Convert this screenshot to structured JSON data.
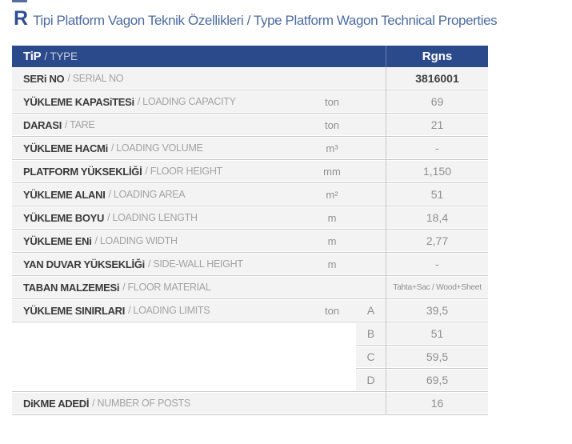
{
  "title": {
    "prefix": "R",
    "text": "Tipi Platform Vagon Teknik Özellikleri / Type Platform Wagon Technical Properties"
  },
  "table": {
    "header": {
      "tr": "TiP",
      "en": "/ TYPE",
      "value": "Rgns"
    },
    "rows": [
      {
        "tr": "SERi NO",
        "en": "/ SERIAL NO",
        "unit": "",
        "letter": "",
        "value": "3816001"
      },
      {
        "tr": "YÜKLEME KAPASiTESi",
        "en": "/ LOADING CAPACITY",
        "unit": "ton",
        "letter": "",
        "value": "69"
      },
      {
        "tr": "DARASI",
        "en": "/ TARE",
        "unit": "ton",
        "letter": "",
        "value": "21"
      },
      {
        "tr": "YÜKLEME HACMi",
        "en": "/ LOADING VOLUME",
        "unit": "m³",
        "letter": "",
        "value": "-"
      },
      {
        "tr": "PLATFORM YÜKSEKLİĞİ",
        "en": "/ FLOOR HEIGHT",
        "unit": "mm",
        "letter": "",
        "value": "1,150"
      },
      {
        "tr": "YÜKLEME ALANI",
        "en": "/ LOADING AREA",
        "unit": "m²",
        "letter": "",
        "value": "51"
      },
      {
        "tr": "YÜKLEME BOYU",
        "en": "/ LOADING LENGTH",
        "unit": "m",
        "letter": "",
        "value": "18,4"
      },
      {
        "tr": "YÜKLEME ENi",
        "en": "/ LOADING WIDTH",
        "unit": "m",
        "letter": "",
        "value": "2,77"
      },
      {
        "tr": "YAN DUVAR YÜKSEKLİĞi",
        "en": "/ SIDE-WALL HEIGHT",
        "unit": "m",
        "letter": "",
        "value": "-"
      },
      {
        "tr": "TABAN MALZEMESi",
        "en": "/ FLOOR MATERIAL",
        "unit": "",
        "letter": "",
        "value": "Tahta+Sac / Wood+Sheet"
      },
      {
        "tr": "YÜKLEME SINIRLARI",
        "en": "/ LOADING LIMITS",
        "unit": "ton",
        "letter": "A",
        "value": "39,5"
      },
      {
        "tr": "",
        "en": "",
        "unit": "",
        "letter": "B",
        "value": "51"
      },
      {
        "tr": "",
        "en": "",
        "unit": "",
        "letter": "C",
        "value": "59,5"
      },
      {
        "tr": "",
        "en": "",
        "unit": "",
        "letter": "D",
        "value": "69,5"
      },
      {
        "tr": "DiKME ADEDİ",
        "en": "/ NUMBER OF POSTS",
        "unit": "",
        "letter": "",
        "value": "16"
      }
    ]
  },
  "colors": {
    "header_bg": "#2b4a8b",
    "title_blue": "#4d6ba1",
    "row_bg": "#f3f3f3",
    "divider": "#c9c9c9",
    "label_dark": "#3a3a3b",
    "label_light": "#a3a3a3",
    "value_gray": "#8e8f91"
  }
}
